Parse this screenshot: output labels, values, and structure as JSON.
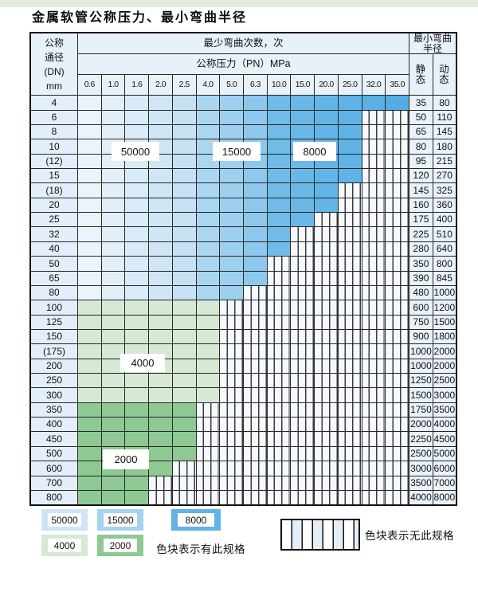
{
  "title": "金属软管公称压力、最小弯曲半径",
  "header": {
    "dn_unit_lines": [
      "公称",
      "通径",
      "(DN)",
      "mm"
    ],
    "min_cycles": "最少弯曲次数，次",
    "pressure": "公称压力（PN）MPa",
    "min_radius": "最小弯曲半径",
    "static": "静 态",
    "dynamic": "动 态",
    "pressures": [
      "0.6",
      "1.0",
      "1.6",
      "2.0",
      "2.5",
      "4.0",
      "5.0",
      "6.3",
      "10.0",
      "15.0",
      "20.0",
      "25.0",
      "32.0",
      "35.0"
    ]
  },
  "rows": [
    {
      "dn": "4",
      "span": 14,
      "grade": "blue",
      "static": "35",
      "dynamic": "80"
    },
    {
      "dn": "6",
      "span": 12,
      "grade": "blue",
      "static": "50",
      "dynamic": "110"
    },
    {
      "dn": "8",
      "span": 12,
      "grade": "blue",
      "static": "65",
      "dynamic": "145"
    },
    {
      "dn": "10",
      "span": 12,
      "grade": "blue",
      "static": "80",
      "dynamic": "180"
    },
    {
      "dn": "(12)",
      "span": 12,
      "grade": "blue",
      "static": "95",
      "dynamic": "215"
    },
    {
      "dn": "15",
      "span": 12,
      "grade": "blue",
      "static": "120",
      "dynamic": "270"
    },
    {
      "dn": "(18)",
      "span": 11,
      "grade": "blue",
      "static": "145",
      "dynamic": "325"
    },
    {
      "dn": "20",
      "span": 11,
      "grade": "blue",
      "static": "160",
      "dynamic": "360"
    },
    {
      "dn": "25",
      "span": 10,
      "grade": "blue",
      "static": "175",
      "dynamic": "400"
    },
    {
      "dn": "32",
      "span": 9,
      "grade": "blue",
      "static": "225",
      "dynamic": "510"
    },
    {
      "dn": "40",
      "span": 9,
      "grade": "blue",
      "static": "280",
      "dynamic": "640"
    },
    {
      "dn": "50",
      "span": 8,
      "grade": "blue",
      "static": "350",
      "dynamic": "800"
    },
    {
      "dn": "65",
      "span": 8,
      "grade": "blue",
      "static": "390",
      "dynamic": "845"
    },
    {
      "dn": "80",
      "span": 7,
      "grade": "blue",
      "static": "480",
      "dynamic": "1000"
    },
    {
      "dn": "100",
      "span": 6,
      "grade": "green4000",
      "static": "600",
      "dynamic": "1200"
    },
    {
      "dn": "125",
      "span": 6,
      "grade": "green4000",
      "static": "750",
      "dynamic": "1500"
    },
    {
      "dn": "150",
      "span": 6,
      "grade": "green4000",
      "static": "900",
      "dynamic": "1800"
    },
    {
      "dn": "(175)",
      "span": 6,
      "grade": "green4000",
      "static": "1000",
      "dynamic": "2000"
    },
    {
      "dn": "200",
      "span": 6,
      "grade": "green4000",
      "static": "1000",
      "dynamic": "2000"
    },
    {
      "dn": "250",
      "span": 6,
      "grade": "green4000",
      "static": "1250",
      "dynamic": "2500"
    },
    {
      "dn": "300",
      "span": 6,
      "grade": "green4000",
      "static": "1500",
      "dynamic": "3000"
    },
    {
      "dn": "350",
      "span": 5,
      "grade": "green2000",
      "static": "1750",
      "dynamic": "3500"
    },
    {
      "dn": "400",
      "span": 5,
      "grade": "green2000",
      "static": "2000",
      "dynamic": "4000"
    },
    {
      "dn": "450",
      "span": 5,
      "grade": "green2000",
      "static": "2250",
      "dynamic": "4500"
    },
    {
      "dn": "500",
      "span": 5,
      "grade": "green2000",
      "static": "2500",
      "dynamic": "5000"
    },
    {
      "dn": "600",
      "span": 4,
      "grade": "green2000",
      "static": "3000",
      "dynamic": "6000"
    },
    {
      "dn": "700",
      "span": 3,
      "grade": "green2000",
      "static": "3500",
      "dynamic": "7000"
    },
    {
      "dn": "800",
      "span": 3,
      "grade": "green2000",
      "static": "4000",
      "dynamic": "8000"
    }
  ],
  "cycle_labels": [
    "50000",
    "15000",
    "8000",
    "4000",
    "2000"
  ],
  "legend": {
    "swatches": [
      {
        "label": "50000",
        "color": "#cfe5f6"
      },
      {
        "label": "15000",
        "color": "#a6d3f0"
      },
      {
        "label": "8000",
        "color": "#62b3e6"
      },
      {
        "label": "4000",
        "color": "#d6e9d4"
      },
      {
        "label": "2000",
        "color": "#8dc993"
      }
    ],
    "available_note": "色块表示有此规格",
    "unavailable_note": "色块表示无此规格"
  },
  "colors": {
    "blue_band1": [
      "#ebf4fb",
      "#c6e1f4"
    ],
    "blue_band2": [
      "#abd6f1",
      "#8ec9ed"
    ],
    "blue_band3": [
      "#70bbe9",
      "#53ade4"
    ],
    "green_4000": "#d6e9d4",
    "green_2000": "#8ec994"
  }
}
